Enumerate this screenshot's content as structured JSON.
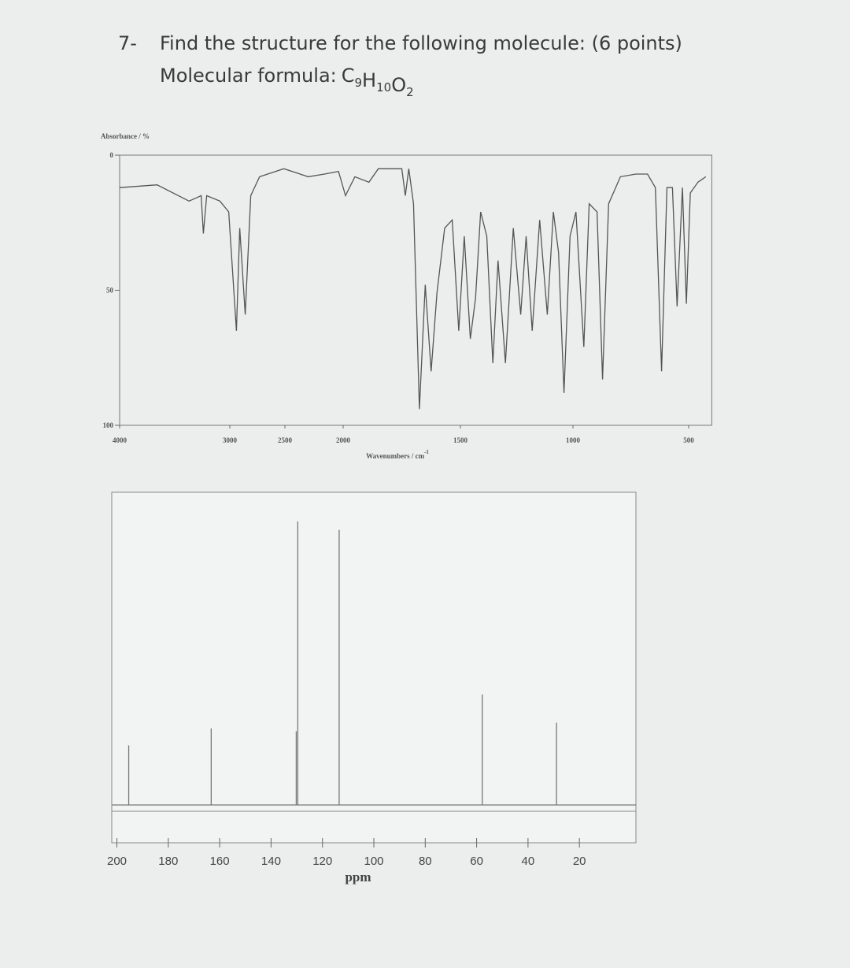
{
  "question": {
    "number": "7-",
    "text": "Find the structure for the following molecule: (6 points)",
    "formula_label": "Molecular formula:",
    "formula": [
      {
        "symbol": "C",
        "count": "9"
      },
      {
        "symbol": "H",
        "count": "10"
      },
      {
        "symbol": "O",
        "count": "2"
      }
    ]
  },
  "chart_data": [
    {
      "type": "line",
      "y_label": "Absorbance / %",
      "x_label": "Wavenumbers / cm",
      "x_label_sup": "-1",
      "color": "#555555",
      "x": [
        4000,
        3660,
        3370,
        3260,
        3240,
        3210,
        3090,
        3010,
        2940,
        2910,
        2860,
        2810,
        2730,
        2510,
        2300,
        2160,
        2040,
        1990,
        1950,
        1890,
        1850,
        1750,
        1735,
        1720,
        1700,
        1675,
        1650,
        1625,
        1600,
        1567,
        1535,
        1507,
        1483,
        1456,
        1433,
        1410,
        1383,
        1356,
        1333,
        1300,
        1265,
        1232,
        1208,
        1181,
        1148,
        1114,
        1087,
        1064,
        1040,
        1013,
        987,
        953,
        930,
        896,
        872,
        846,
        795,
        728,
        678,
        644,
        617,
        594,
        570,
        550,
        527,
        510,
        493,
        460,
        426
      ],
      "values": [
        12,
        11,
        17,
        15,
        29,
        15,
        17,
        21,
        65,
        27,
        59,
        15,
        8,
        5,
        8,
        7,
        6,
        15,
        8,
        10,
        5,
        5,
        15,
        5,
        18,
        94,
        48,
        80,
        51,
        27,
        24,
        65,
        30,
        68,
        53,
        21,
        30,
        77,
        39,
        77,
        27,
        59,
        30,
        65,
        24,
        59,
        21,
        36,
        88,
        30,
        21,
        71,
        18,
        21,
        83,
        18,
        8,
        7,
        7,
        12,
        80,
        12,
        12,
        56,
        12,
        55,
        14,
        10,
        8
      ],
      "xlim": [
        4000,
        400
      ],
      "xticks": [
        4000,
        3000,
        2500,
        2000,
        1500,
        1000,
        500
      ],
      "ylim": [
        0,
        100
      ],
      "yticks": [
        0,
        50,
        100
      ],
      "y_inverted": true
    },
    {
      "type": "stick",
      "x_label": "ppm",
      "color": "#777777",
      "x": [
        195.4,
        163.3,
        130.2,
        129.6,
        113.5,
        57.8,
        28.9
      ],
      "values": [
        21,
        27,
        26,
        100,
        97,
        39,
        29
      ],
      "xlim": [
        202,
        -2
      ],
      "xticks": [
        200,
        180,
        160,
        140,
        120,
        100,
        80,
        60,
        40,
        20
      ]
    }
  ]
}
